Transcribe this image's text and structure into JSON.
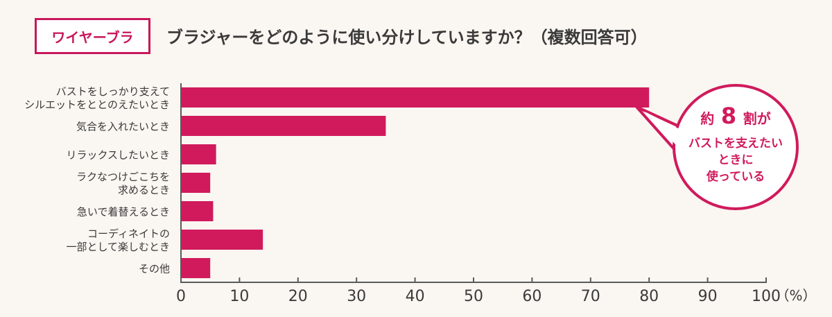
{
  "header": {
    "tag": "ワイヤーブラ",
    "title": "ブラジャーをどのように使い分けしていますか？（複数回答可）"
  },
  "colors": {
    "accent": "#d01a5c",
    "text": "#3a3a3a",
    "axis": "#5a5a5a"
  },
  "callout": {
    "prefix": "約",
    "number": "8",
    "suffix": "割が",
    "lines": [
      "バストを支えたい",
      "ときに",
      "使っている"
    ]
  },
  "chart_data": {
    "type": "bar",
    "orientation": "horizontal",
    "categories": [
      [
        "バストをしっかり支えて",
        "シルエットをととのえたいとき"
      ],
      [
        "気合を入れたいとき"
      ],
      [
        "リラックスしたいとき"
      ],
      [
        "ラクなつけごこちを",
        "求めるとき"
      ],
      [
        "急いで着替えるとき"
      ],
      [
        "コーディネイトの",
        "一部として楽しむとき"
      ],
      [
        "その他"
      ]
    ],
    "values": [
      80,
      35,
      6,
      5,
      5.5,
      14,
      5
    ],
    "xlim": [
      0,
      100
    ],
    "xticks": [
      0,
      10,
      20,
      30,
      40,
      50,
      60,
      70,
      80,
      90,
      100
    ],
    "xunit": "（%）",
    "grid": false
  }
}
